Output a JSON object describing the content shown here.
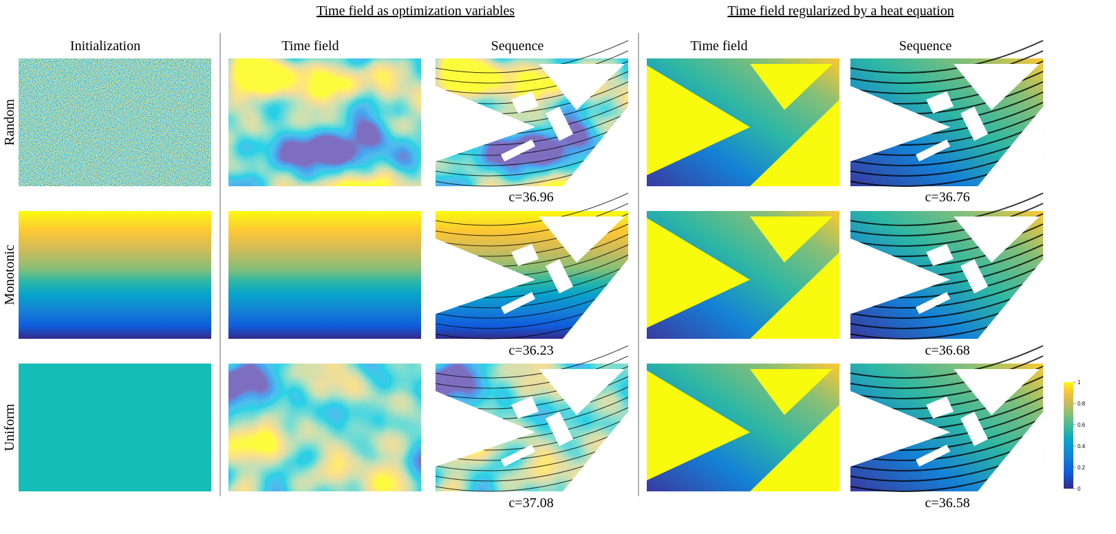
{
  "header": {
    "groups": [
      "Time field as optimization variables",
      "Time field regularized by a heat equation"
    ]
  },
  "columns": [
    "Initialization",
    "Time field",
    "Sequence",
    "Time field",
    "Sequence"
  ],
  "rows": [
    "Random",
    "Monotonic",
    "Uniform"
  ],
  "compliance": {
    "optimization": [
      "c=36.96",
      "c=36.23",
      "c=37.08"
    ],
    "heat": [
      "c=36.76",
      "c=36.68",
      "c=36.58"
    ]
  },
  "colorbar": {
    "ticks": [
      0,
      0.2,
      0.4,
      0.6,
      0.8,
      1
    ]
  }
}
